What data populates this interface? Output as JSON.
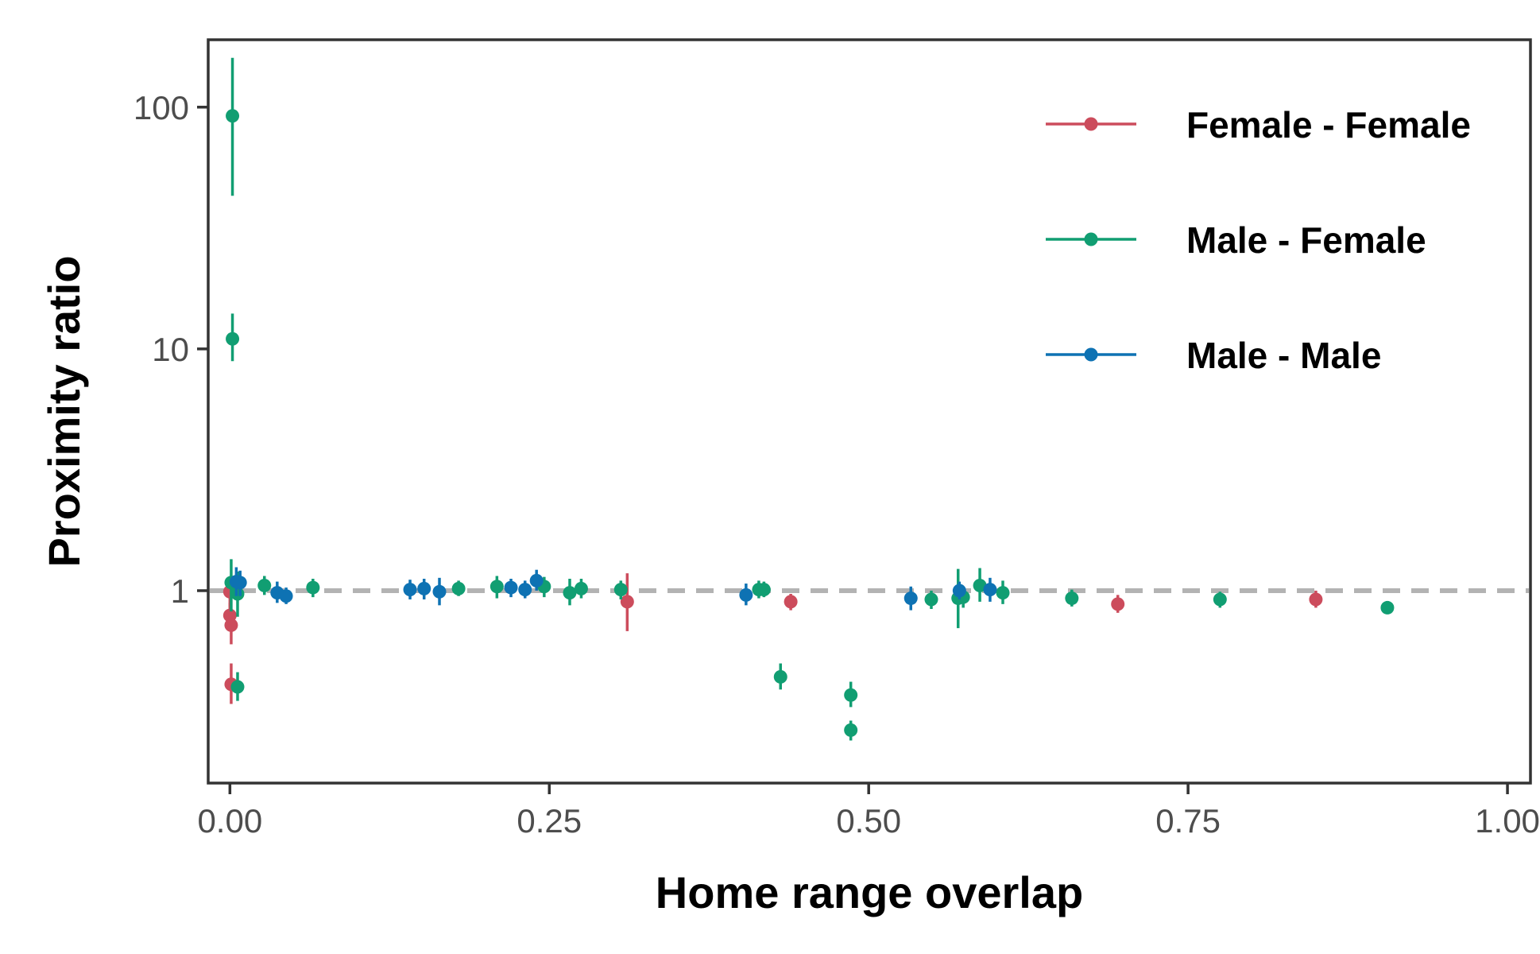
{
  "chart_data": {
    "type": "scatter",
    "title": "",
    "xlabel": "Home range overlap",
    "ylabel": "Proximity ratio",
    "xlim": [
      -0.017,
      1.018
    ],
    "ylim": [
      0.16,
      190
    ],
    "y_scale": "log10",
    "x_ticks": [
      {
        "value": 0.0,
        "label": "0.00"
      },
      {
        "value": 0.25,
        "label": "0.25"
      },
      {
        "value": 0.5,
        "label": "0.50"
      },
      {
        "value": 0.75,
        "label": "0.75"
      },
      {
        "value": 1.0,
        "label": "1.00"
      }
    ],
    "y_ticks": [
      {
        "value": 1,
        "label": "1"
      },
      {
        "value": 10,
        "label": "10"
      },
      {
        "value": 100,
        "label": "100"
      }
    ],
    "reference_line": {
      "y": 1,
      "style": "dashed",
      "color": "#b3b3b3"
    },
    "grid": false,
    "legend_position": "top-right",
    "series": [
      {
        "name": "Female - Female",
        "color": "#cc4c5c",
        "points": [
          {
            "x": 0.0,
            "y": 0.99,
            "lo": 0.85,
            "hi": 1.1
          },
          {
            "x": 0.0,
            "y": 0.79,
            "lo": 0.7,
            "hi": 0.89
          },
          {
            "x": 0.001,
            "y": 0.72,
            "lo": 0.6,
            "hi": 0.83
          },
          {
            "x": 0.001,
            "y": 0.41,
            "lo": 0.34,
            "hi": 0.5
          },
          {
            "x": 0.311,
            "y": 0.9,
            "lo": 0.68,
            "hi": 1.18
          },
          {
            "x": 0.439,
            "y": 0.9,
            "lo": 0.83,
            "hi": 0.97
          },
          {
            "x": 0.695,
            "y": 0.88,
            "lo": 0.81,
            "hi": 0.96
          },
          {
            "x": 0.85,
            "y": 0.92,
            "lo": 0.85,
            "hi": 1.0
          }
        ]
      },
      {
        "name": "Male - Female",
        "color": "#119e72",
        "points": [
          {
            "x": 0.002,
            "y": 92,
            "lo": 43,
            "hi": 160
          },
          {
            "x": 0.002,
            "y": 11,
            "lo": 8.9,
            "hi": 14
          },
          {
            "x": 0.001,
            "y": 1.08,
            "lo": 0.82,
            "hi": 1.35
          },
          {
            "x": 0.006,
            "y": 0.97,
            "lo": 0.78,
            "hi": 1.2
          },
          {
            "x": 0.006,
            "y": 0.4,
            "lo": 0.35,
            "hi": 0.46
          },
          {
            "x": 0.027,
            "y": 1.05,
            "lo": 0.96,
            "hi": 1.15
          },
          {
            "x": 0.065,
            "y": 1.03,
            "lo": 0.94,
            "hi": 1.12
          },
          {
            "x": 0.179,
            "y": 1.02,
            "lo": 0.95,
            "hi": 1.1
          },
          {
            "x": 0.209,
            "y": 1.04,
            "lo": 0.93,
            "hi": 1.15
          },
          {
            "x": 0.246,
            "y": 1.04,
            "lo": 0.94,
            "hi": 1.14
          },
          {
            "x": 0.266,
            "y": 0.98,
            "lo": 0.87,
            "hi": 1.12
          },
          {
            "x": 0.275,
            "y": 1.02,
            "lo": 0.93,
            "hi": 1.12
          },
          {
            "x": 0.306,
            "y": 1.01,
            "lo": 0.92,
            "hi": 1.1
          },
          {
            "x": 0.414,
            "y": 1.01,
            "lo": 0.93,
            "hi": 1.1
          },
          {
            "x": 0.418,
            "y": 1.01,
            "lo": 0.94,
            "hi": 1.09
          },
          {
            "x": 0.431,
            "y": 0.44,
            "lo": 0.39,
            "hi": 0.5
          },
          {
            "x": 0.486,
            "y": 0.37,
            "lo": 0.33,
            "hi": 0.42
          },
          {
            "x": 0.486,
            "y": 0.265,
            "lo": 0.24,
            "hi": 0.29
          },
          {
            "x": 0.549,
            "y": 0.92,
            "lo": 0.84,
            "hi": 1.0
          },
          {
            "x": 0.57,
            "y": 0.93,
            "lo": 0.7,
            "hi": 1.23
          },
          {
            "x": 0.574,
            "y": 0.94,
            "lo": 0.85,
            "hi": 1.03
          },
          {
            "x": 0.587,
            "y": 1.05,
            "lo": 0.9,
            "hi": 1.24
          },
          {
            "x": 0.605,
            "y": 0.98,
            "lo": 0.88,
            "hi": 1.1
          },
          {
            "x": 0.659,
            "y": 0.93,
            "lo": 0.86,
            "hi": 1.01
          },
          {
            "x": 0.775,
            "y": 0.92,
            "lo": 0.85,
            "hi": 0.99
          },
          {
            "x": 0.906,
            "y": 0.85,
            "lo": 0.8,
            "hi": 0.9
          }
        ]
      },
      {
        "name": "Male - Male",
        "color": "#0e72b3",
        "points": [
          {
            "x": 0.005,
            "y": 1.09,
            "lo": 0.95,
            "hi": 1.25
          },
          {
            "x": 0.008,
            "y": 1.08,
            "lo": 0.95,
            "hi": 1.21
          },
          {
            "x": 0.037,
            "y": 0.98,
            "lo": 0.89,
            "hi": 1.09
          },
          {
            "x": 0.044,
            "y": 0.95,
            "lo": 0.88,
            "hi": 1.03
          },
          {
            "x": 0.141,
            "y": 1.01,
            "lo": 0.92,
            "hi": 1.11
          },
          {
            "x": 0.152,
            "y": 1.02,
            "lo": 0.92,
            "hi": 1.12
          },
          {
            "x": 0.164,
            "y": 0.99,
            "lo": 0.87,
            "hi": 1.13
          },
          {
            "x": 0.22,
            "y": 1.03,
            "lo": 0.94,
            "hi": 1.12
          },
          {
            "x": 0.231,
            "y": 1.01,
            "lo": 0.93,
            "hi": 1.1
          },
          {
            "x": 0.24,
            "y": 1.1,
            "lo": 1.0,
            "hi": 1.22
          },
          {
            "x": 0.404,
            "y": 0.96,
            "lo": 0.87,
            "hi": 1.07
          },
          {
            "x": 0.533,
            "y": 0.93,
            "lo": 0.83,
            "hi": 1.04
          },
          {
            "x": 0.571,
            "y": 1.0,
            "lo": 0.92,
            "hi": 1.09
          },
          {
            "x": 0.595,
            "y": 1.01,
            "lo": 0.9,
            "hi": 1.13
          }
        ]
      }
    ]
  }
}
